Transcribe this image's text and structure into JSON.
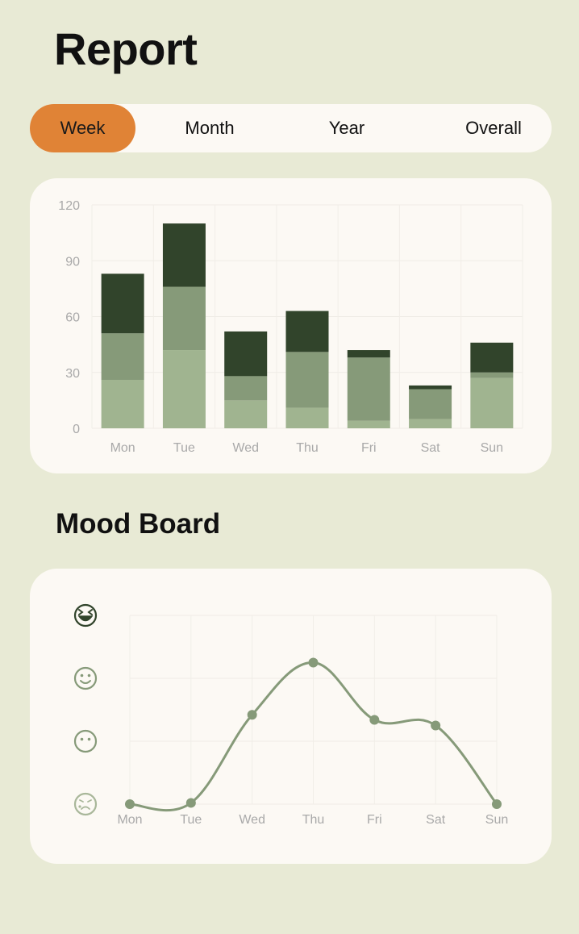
{
  "header": {
    "title": "Report"
  },
  "tabs": [
    {
      "label": "Week",
      "active": true
    },
    {
      "label": "Month",
      "active": false
    },
    {
      "label": "Year",
      "active": false
    },
    {
      "label": "Overall",
      "active": false
    }
  ],
  "colors": {
    "accent": "#e08336",
    "light_green": "#a0b490",
    "mid_green": "#869a79",
    "dark_green": "#31442b",
    "line_green": "#869a79"
  },
  "mood_board": {
    "title": "Mood Board"
  },
  "chart_data": [
    {
      "type": "bar",
      "stacked": true,
      "categories": [
        "Mon",
        "Tue",
        "Wed",
        "Thu",
        "Fri",
        "Sat",
        "Sun"
      ],
      "ylim": [
        0,
        120
      ],
      "yticks": [
        0,
        30,
        60,
        90,
        120
      ],
      "grid": true,
      "series": [
        {
          "color": "#a0b490",
          "values": [
            26,
            42,
            15,
            11,
            4,
            5,
            27
          ]
        },
        {
          "color": "#869a79",
          "values": [
            25,
            34,
            13,
            30,
            34,
            16,
            3
          ]
        },
        {
          "color": "#31442b",
          "values": [
            32,
            34,
            24,
            22,
            4,
            2,
            16
          ]
        }
      ]
    },
    {
      "type": "line",
      "smooth": true,
      "categories": [
        "Mon",
        "Tue",
        "Wed",
        "Thu",
        "Fri",
        "Sat",
        "Sun"
      ],
      "ylim": [
        0,
        3
      ],
      "y_levels": [
        "sad",
        "neutral",
        "happy",
        "ecstatic"
      ],
      "y_icons": [
        "sad-face-icon",
        "neutral-face-icon",
        "smile-face-icon",
        "ecstatic-face-icon"
      ],
      "values": [
        0,
        0.02,
        1.42,
        2.25,
        1.34,
        1.25,
        0
      ],
      "grid": true
    }
  ]
}
